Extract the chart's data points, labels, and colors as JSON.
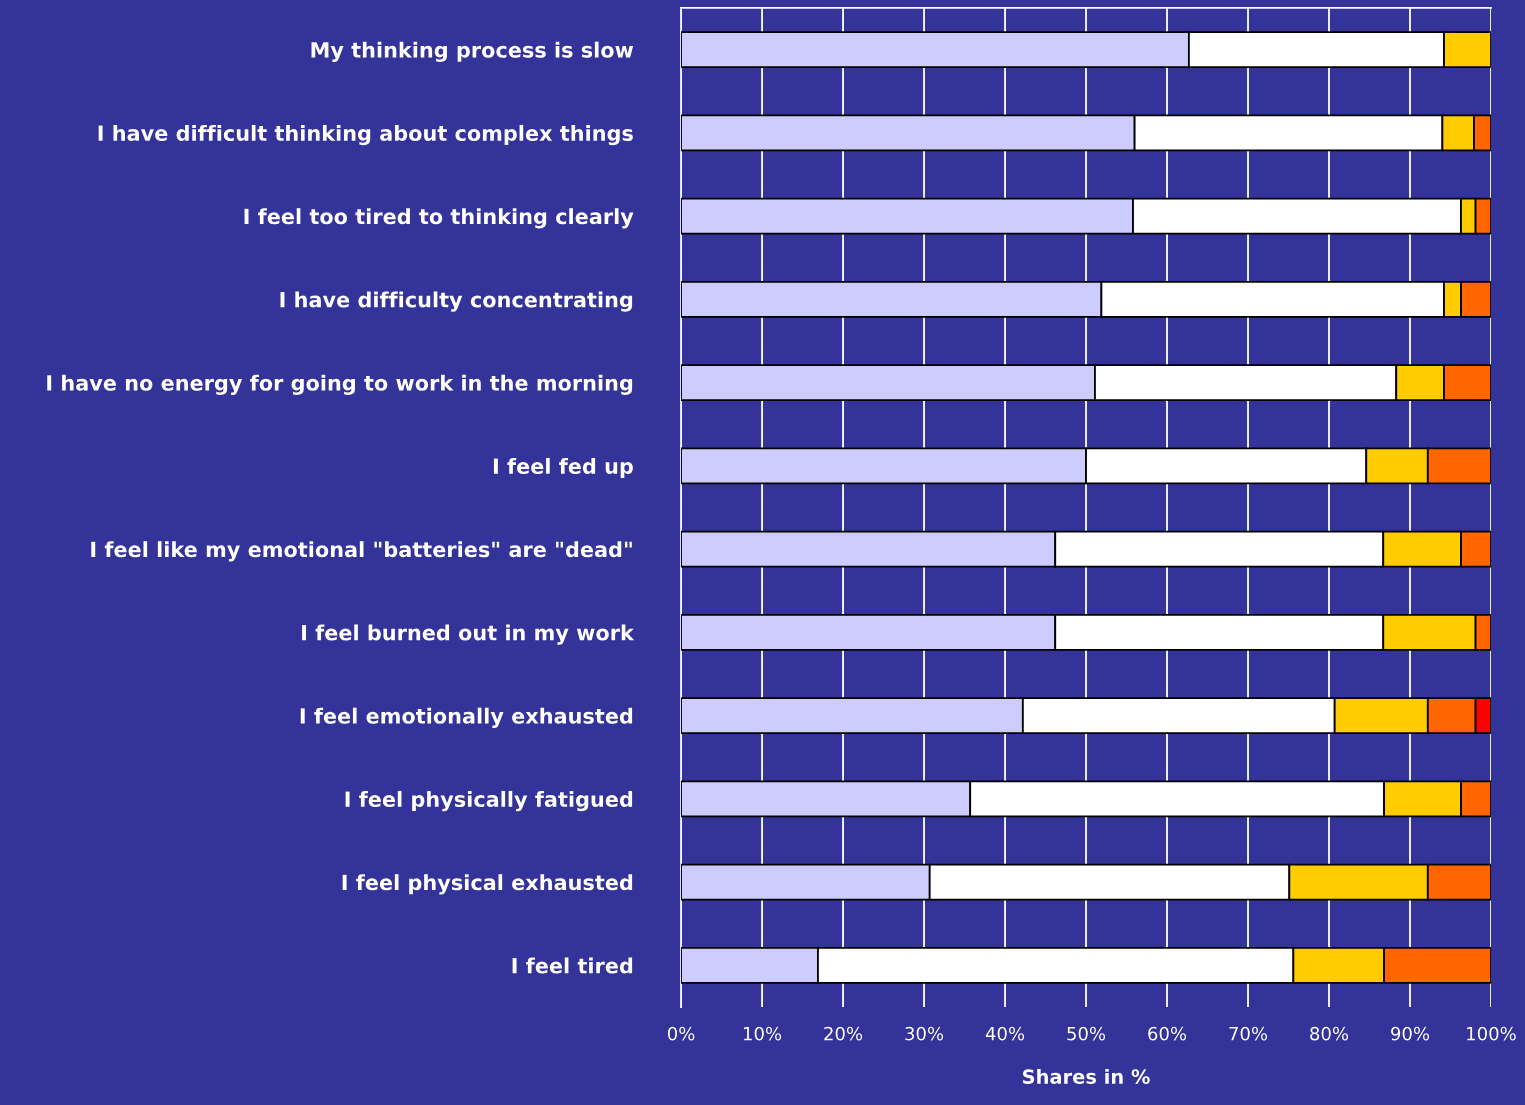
{
  "chart_data": {
    "type": "bar",
    "orientation": "horizontal",
    "stacked": true,
    "xlabel": "Shares in %",
    "categories": [
      "My thinking process is slow",
      "I have difficult thinking about complex things",
      "I feel too tired to thinking clearly",
      "I have difficulty concentrating",
      "I have no energy for going to work in the morning",
      "I feel fed up",
      "I feel like my emotional \"batteries\" are \"dead\"",
      "I feel burned out in my work",
      "I feel emotionally exhausted",
      "I feel physically fatigued",
      "I feel physical exhausted",
      "I feel tired"
    ],
    "series": [
      {
        "color": "#ccccff",
        "values": [
          62.7,
          56.0,
          55.8,
          51.9,
          51.1,
          50.0,
          46.2,
          46.2,
          42.2,
          35.7,
          30.7,
          16.9
        ]
      },
      {
        "color": "#ffffff",
        "values": [
          31.5,
          38.0,
          40.5,
          42.3,
          37.2,
          34.6,
          40.5,
          40.5,
          38.5,
          51.1,
          44.4,
          58.7
        ]
      },
      {
        "color": "#ffcc00",
        "values": [
          5.8,
          3.9,
          1.8,
          2.1,
          5.9,
          7.6,
          9.6,
          11.4,
          11.5,
          9.5,
          17.1,
          11.2
        ]
      },
      {
        "color": "#ff6600",
        "values": [
          null,
          2.1,
          1.9,
          3.7,
          5.8,
          7.8,
          3.7,
          1.9,
          5.9,
          3.7,
          7.8,
          13.2
        ]
      },
      {
        "color": "#ff0000",
        "values": [
          null,
          null,
          null,
          null,
          null,
          null,
          null,
          null,
          1.9,
          null,
          null,
          null
        ]
      }
    ],
    "xlim": [
      0,
      100
    ],
    "xticks": [
      {
        "value": 0,
        "label": "0%"
      },
      {
        "value": 10,
        "label": "10%"
      },
      {
        "value": 20,
        "label": "20%"
      },
      {
        "value": 30,
        "label": "30%"
      },
      {
        "value": 40,
        "label": "40%"
      },
      {
        "value": 50,
        "label": "50%"
      },
      {
        "value": 60,
        "label": "60%"
      },
      {
        "value": 70,
        "label": "70%"
      },
      {
        "value": 80,
        "label": "80%"
      },
      {
        "value": 90,
        "label": "90%"
      },
      {
        "value": 100,
        "label": "100%"
      }
    ],
    "grid": "x"
  }
}
